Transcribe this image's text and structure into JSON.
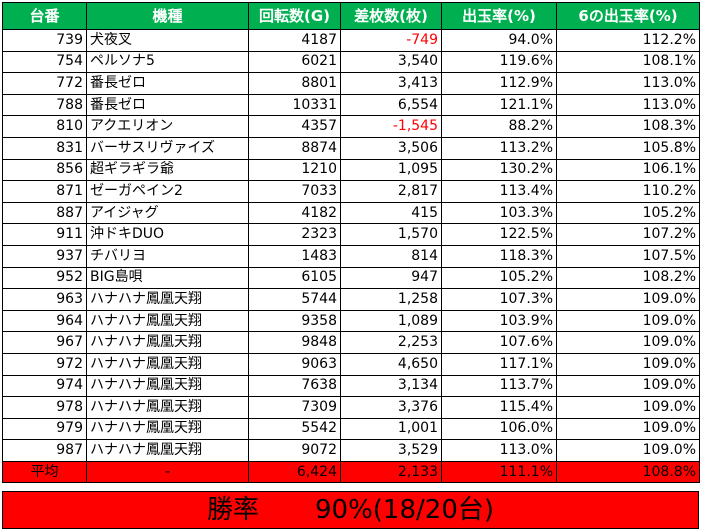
{
  "headers": [
    "台番",
    "機種",
    "回転数(G)",
    "差枚数(枚)",
    "出玉率(%)",
    "6の出玉率(%)"
  ],
  "rows": [
    {
      "no": "739",
      "machine": "犬夜叉",
      "spins": "4187",
      "diff": "-749",
      "rate": "94.0%",
      "rate6": "112.2%",
      "negative": true
    },
    {
      "no": "754",
      "machine": "ペルソナ5",
      "spins": "6021",
      "diff": "3,540",
      "rate": "119.6%",
      "rate6": "108.1%",
      "negative": false
    },
    {
      "no": "772",
      "machine": "番長ゼロ",
      "spins": "8801",
      "diff": "3,413",
      "rate": "112.9%",
      "rate6": "113.0%",
      "negative": false
    },
    {
      "no": "788",
      "machine": "番長ゼロ",
      "spins": "10331",
      "diff": "6,554",
      "rate": "121.1%",
      "rate6": "113.0%",
      "negative": false
    },
    {
      "no": "810",
      "machine": "アクエリオン",
      "spins": "4357",
      "diff": "-1,545",
      "rate": "88.2%",
      "rate6": "108.3%",
      "negative": true
    },
    {
      "no": "831",
      "machine": "バーサスリヴァイズ",
      "spins": "8874",
      "diff": "3,506",
      "rate": "113.2%",
      "rate6": "105.8%",
      "negative": false
    },
    {
      "no": "856",
      "machine": "超ギラギラ爺",
      "spins": "1210",
      "diff": "1,095",
      "rate": "130.2%",
      "rate6": "106.1%",
      "negative": false
    },
    {
      "no": "871",
      "machine": "ゼーガペイン2",
      "spins": "7033",
      "diff": "2,817",
      "rate": "113.4%",
      "rate6": "110.2%",
      "negative": false
    },
    {
      "no": "887",
      "machine": "アイジャグ",
      "spins": "4182",
      "diff": "415",
      "rate": "103.3%",
      "rate6": "105.2%",
      "negative": false
    },
    {
      "no": "911",
      "machine": "沖ドキDUO",
      "spins": "2323",
      "diff": "1,570",
      "rate": "122.5%",
      "rate6": "107.2%",
      "negative": false
    },
    {
      "no": "937",
      "machine": "チバリヨ",
      "spins": "1483",
      "diff": "814",
      "rate": "118.3%",
      "rate6": "107.5%",
      "negative": false
    },
    {
      "no": "952",
      "machine": "BIG島唄",
      "spins": "6105",
      "diff": "947",
      "rate": "105.2%",
      "rate6": "108.2%",
      "negative": false
    },
    {
      "no": "963",
      "machine": "ハナハナ鳳凰天翔",
      "spins": "5744",
      "diff": "1,258",
      "rate": "107.3%",
      "rate6": "109.0%",
      "negative": false
    },
    {
      "no": "964",
      "machine": "ハナハナ鳳凰天翔",
      "spins": "9358",
      "diff": "1,089",
      "rate": "103.9%",
      "rate6": "109.0%",
      "negative": false
    },
    {
      "no": "967",
      "machine": "ハナハナ鳳凰天翔",
      "spins": "9848",
      "diff": "2,253",
      "rate": "107.6%",
      "rate6": "109.0%",
      "negative": false
    },
    {
      "no": "972",
      "machine": "ハナハナ鳳凰天翔",
      "spins": "9063",
      "diff": "4,650",
      "rate": "117.1%",
      "rate6": "109.0%",
      "negative": false
    },
    {
      "no": "974",
      "machine": "ハナハナ鳳凰天翔",
      "spins": "7638",
      "diff": "3,134",
      "rate": "113.7%",
      "rate6": "109.0%",
      "negative": false
    },
    {
      "no": "978",
      "machine": "ハナハナ鳳凰天翔",
      "spins": "7309",
      "diff": "3,376",
      "rate": "115.4%",
      "rate6": "109.0%",
      "negative": false
    },
    {
      "no": "979",
      "machine": "ハナハナ鳳凰天翔",
      "spins": "5542",
      "diff": "1,001",
      "rate": "106.0%",
      "rate6": "109.0%",
      "negative": false
    },
    {
      "no": "987",
      "machine": "ハナハナ鳳凰天翔",
      "spins": "9072",
      "diff": "3,529",
      "rate": "113.0%",
      "rate6": "109.0%",
      "negative": false
    }
  ],
  "average": {
    "label": "平均",
    "machine": "-",
    "spins": "6,424",
    "diff": "2,133",
    "rate": "111.1%",
    "rate6": "108.8%"
  },
  "win": {
    "label": "勝率",
    "value": "90%(18/20台)"
  },
  "colors": {
    "header_bg": "#00b050",
    "header_text": "#ffffff",
    "negative": "#ff0000",
    "summary_bg": "#ff0000"
  }
}
